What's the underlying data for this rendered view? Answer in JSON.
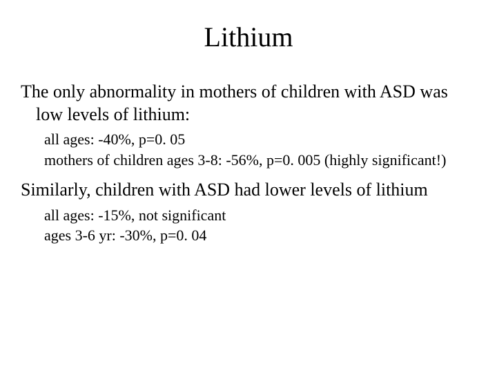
{
  "title_fontsize": 40,
  "body_fontsize": 26,
  "sub_fontsize": 22,
  "text_color": "#000000",
  "background_color": "#ffffff",
  "font_family": "Times New Roman",
  "title": "Lithium",
  "para1": "The only abnormality in mothers of children with ASD was low levels of lithium:",
  "para1_sub1": "all ages:  -40%, p=0. 05",
  "para1_sub2": "mothers of children ages 3-8:  -56%, p=0. 005 (highly significant!)",
  "para2": "Similarly, children with ASD had lower levels of lithium",
  "para2_sub1": "all ages:  -15%, not significant",
  "para2_sub2": "ages 3-6 yr:  -30%, p=0. 04"
}
